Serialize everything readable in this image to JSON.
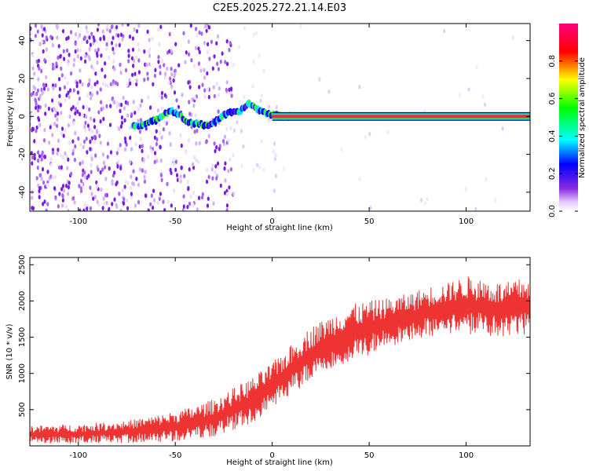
{
  "title": "C2E5.2025.272.21.14.E03",
  "colors": {
    "background": "#ffffff",
    "snr_line": "#ee3333",
    "axis": "#000000",
    "spectrogram_low": "#8a2be2",
    "spectrogram_high": "#ff0000"
  },
  "chart_data": [
    {
      "type": "heatmap",
      "name": "spectrogram",
      "title": "C2E5.2025.272.21.14.E03",
      "xlabel": "Height of straight line (km)",
      "ylabel": "Frequency (Hz)",
      "xlim": [
        -125,
        133
      ],
      "ylim": [
        -50,
        49
      ],
      "x_ticks": [
        -100,
        -50,
        0,
        50,
        100
      ],
      "y_ticks": [
        -40,
        -20,
        0,
        20,
        40
      ],
      "x_tick_labels": [
        "-100",
        "-50",
        "0",
        "50",
        "100"
      ],
      "y_tick_labels": [
        "-40",
        "-20",
        "0",
        "20",
        "40"
      ],
      "colorbar": {
        "label": "Normalized spectral amplitude",
        "range": [
          0,
          1
        ],
        "ticks": [
          0,
          0.2,
          0.4,
          0.6,
          0.8
        ],
        "tick_labels": [
          "0.0",
          "0.2",
          "0.4",
          "0.6",
          "0.8"
        ],
        "colormap": "rainbow (white-violet-blue-cyan-green-yellow-red-magenta)"
      },
      "ridge_frequency_hz": [
        {
          "x": -71,
          "y": -5
        },
        {
          "x": -65,
          "y": -4
        },
        {
          "x": -60,
          "y": -2
        },
        {
          "x": -55,
          "y": 2
        },
        {
          "x": -52,
          "y": 3
        },
        {
          "x": -48,
          "y": 1
        },
        {
          "x": -44,
          "y": -3
        },
        {
          "x": -38,
          "y": -4
        },
        {
          "x": -34,
          "y": -5
        },
        {
          "x": -30,
          "y": -3
        },
        {
          "x": -26,
          "y": 0
        },
        {
          "x": -22,
          "y": 2
        },
        {
          "x": -18,
          "y": 2
        },
        {
          "x": -15,
          "y": 4
        },
        {
          "x": -12,
          "y": 7
        },
        {
          "x": -8,
          "y": 4
        },
        {
          "x": -4,
          "y": 2
        },
        {
          "x": 0,
          "y": 1
        },
        {
          "x": 5,
          "y": 0
        },
        {
          "x": 10,
          "y": 0
        },
        {
          "x": 133,
          "y": 0
        }
      ],
      "notes": "Broadband scattered noise for heights below about -20 km; a steady 0 Hz tone line at maximum amplitude above about 0 km."
    },
    {
      "type": "line",
      "name": "snr",
      "xlabel": "Height of straight line (km)",
      "ylabel": "SNR (10 * v/v)",
      "xlim": [
        -125,
        133
      ],
      "ylim": [
        0,
        2600
      ],
      "x_ticks": [
        -100,
        -50,
        0,
        50,
        100
      ],
      "y_ticks": [
        500,
        1000,
        1500,
        2000,
        2500
      ],
      "x_tick_labels": [
        "-100",
        "-50",
        "0",
        "50",
        "100"
      ],
      "y_tick_labels": [
        "500",
        "1000",
        "1500",
        "2000",
        "2500"
      ],
      "envelope": {
        "x": [
          -125,
          -100,
          -75,
          -60,
          -50,
          -40,
          -30,
          -20,
          -10,
          0,
          10,
          20,
          30,
          40,
          50,
          60,
          70,
          80,
          90,
          100,
          110,
          120,
          133
        ],
        "min": [
          30,
          30,
          40,
          50,
          60,
          80,
          120,
          200,
          300,
          500,
          700,
          900,
          1050,
          1150,
          1250,
          1350,
          1450,
          1500,
          1550,
          1550,
          1500,
          1450,
          1550
        ],
        "max": [
          280,
          300,
          350,
          420,
          480,
          550,
          650,
          800,
          950,
          1150,
          1400,
          1650,
          1800,
          1950,
          2000,
          2050,
          2100,
          2200,
          2250,
          2350,
          2300,
          2250,
          2350
        ]
      }
    }
  ]
}
